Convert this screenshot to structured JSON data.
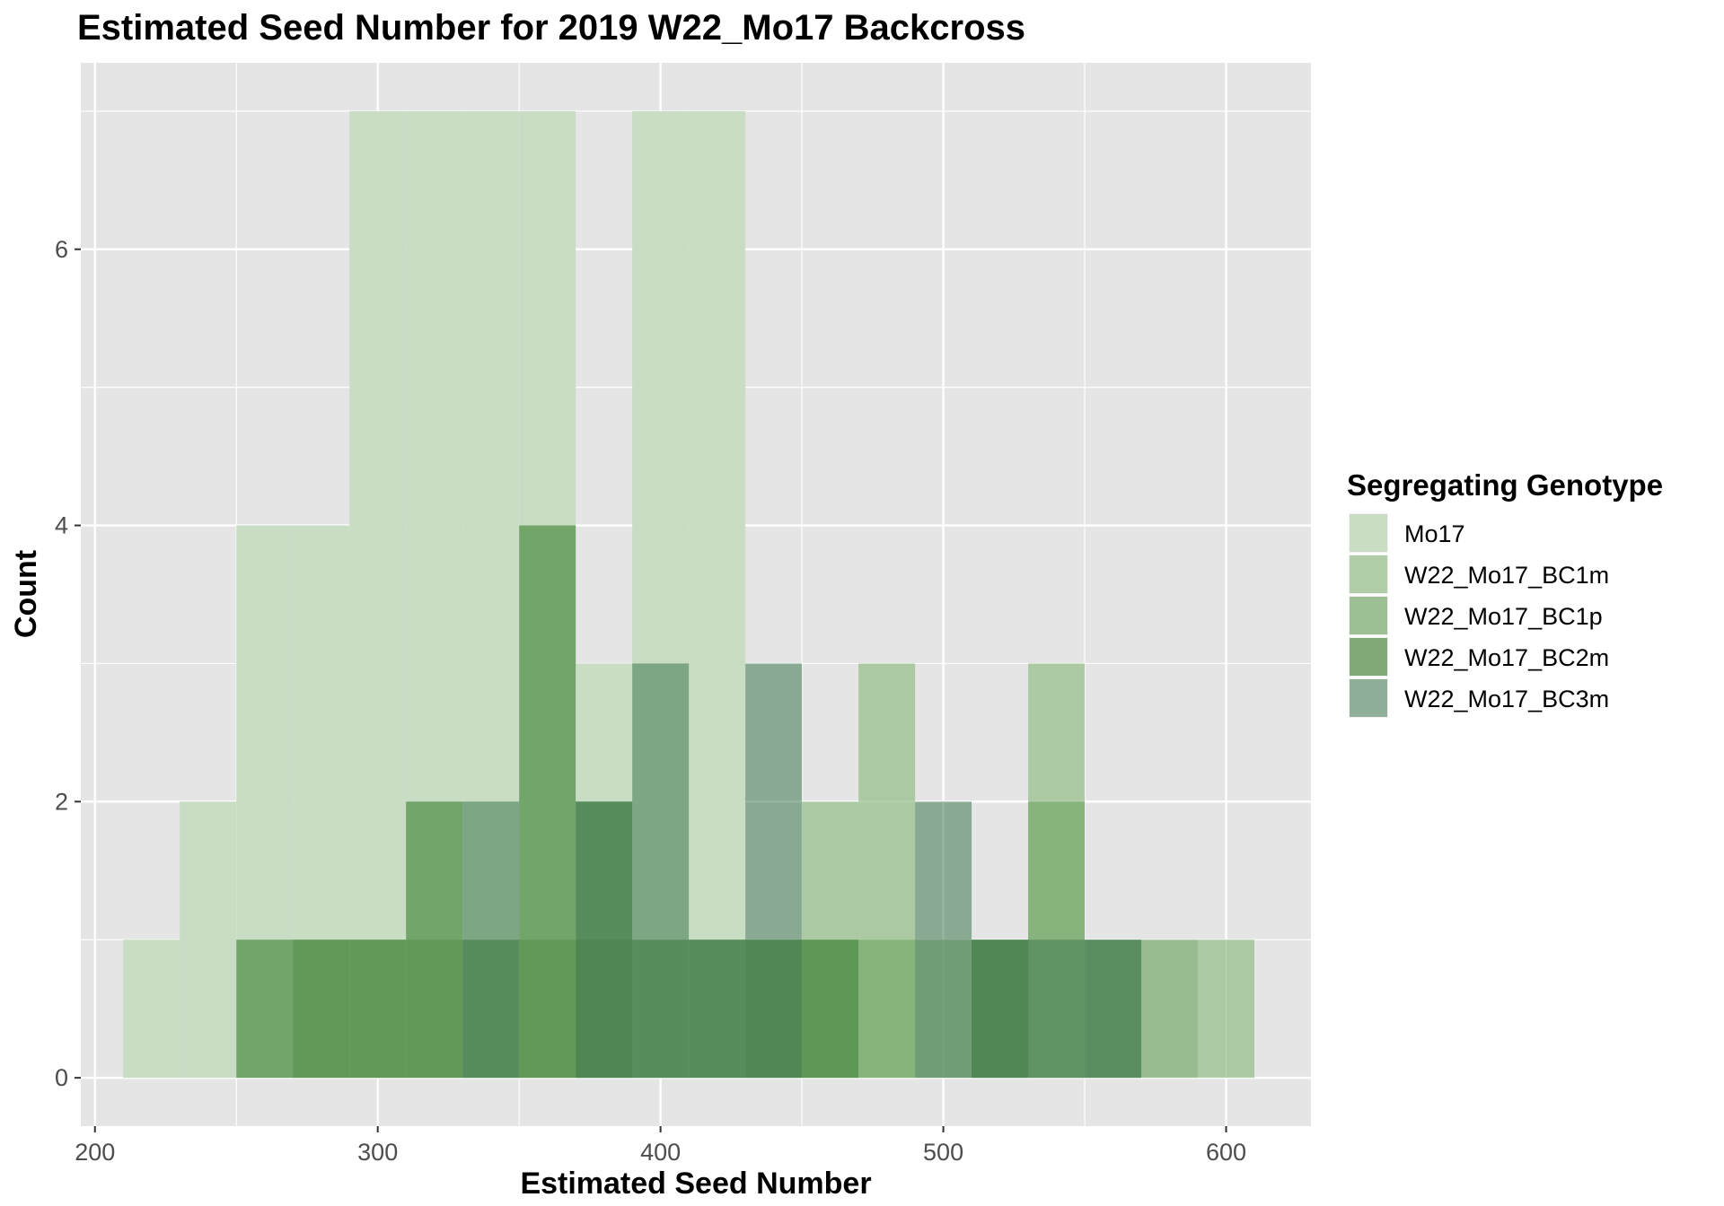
{
  "chart_data": {
    "type": "bar",
    "subtype": "overlaid-histogram",
    "title": "Estimated Seed Number for 2019 W22_Mo17 Backcross",
    "xlabel": "Estimated Seed Number",
    "ylabel": "Count",
    "xlim": [
      195,
      630
    ],
    "ylim": [
      -0.35,
      7.35
    ],
    "x_ticks": [
      200,
      300,
      400,
      500,
      600
    ],
    "y_ticks": [
      0,
      2,
      4,
      6
    ],
    "grid": true,
    "bin_width": 20,
    "legend": {
      "title": "Segregating Genotype",
      "position": "right"
    },
    "series": [
      {
        "name": "Mo17",
        "color": "#c8ddc3",
        "opacity": 1.0,
        "bins": [
          [
            210,
            1
          ],
          [
            230,
            2
          ],
          [
            250,
            4
          ],
          [
            270,
            4
          ],
          [
            290,
            7
          ],
          [
            310,
            7
          ],
          [
            330,
            7
          ],
          [
            350,
            7
          ],
          [
            370,
            3
          ],
          [
            390,
            7
          ],
          [
            410,
            7
          ]
        ]
      },
      {
        "name": "W22_Mo17_BC1m",
        "color": "#93bd87",
        "opacity": 0.7,
        "bins": [
          [
            450,
            2
          ],
          [
            470,
            3
          ],
          [
            490,
            1
          ],
          [
            530,
            3
          ],
          [
            590,
            1
          ]
        ]
      },
      {
        "name": "W22_Mo17_BC1p",
        "color": "#78aa6c",
        "opacity": 0.7,
        "bins": [
          [
            270,
            1
          ],
          [
            290,
            1
          ],
          [
            310,
            1
          ],
          [
            350,
            1
          ],
          [
            370,
            1
          ],
          [
            430,
            1
          ],
          [
            450,
            1
          ],
          [
            470,
            1
          ],
          [
            510,
            1
          ],
          [
            530,
            2
          ],
          [
            570,
            1
          ]
        ]
      },
      {
        "name": "W22_Mo17_BC2m",
        "color": "#4f8c45",
        "opacity": 0.7,
        "bins": [
          [
            250,
            1
          ],
          [
            270,
            1
          ],
          [
            290,
            1
          ],
          [
            310,
            2
          ],
          [
            330,
            1
          ],
          [
            350,
            4
          ],
          [
            370,
            2
          ],
          [
            390,
            1
          ],
          [
            410,
            1
          ],
          [
            430,
            1
          ],
          [
            450,
            1
          ],
          [
            510,
            1
          ],
          [
            550,
            1
          ]
        ]
      },
      {
        "name": "W22_Mo17_BC3m",
        "color": "#3f7850",
        "opacity": 0.55,
        "bins": [
          [
            330,
            2
          ],
          [
            370,
            2
          ],
          [
            390,
            3
          ],
          [
            410,
            1
          ],
          [
            430,
            3
          ],
          [
            490,
            2
          ],
          [
            510,
            1
          ],
          [
            530,
            1
          ],
          [
            550,
            1
          ]
        ]
      }
    ]
  }
}
